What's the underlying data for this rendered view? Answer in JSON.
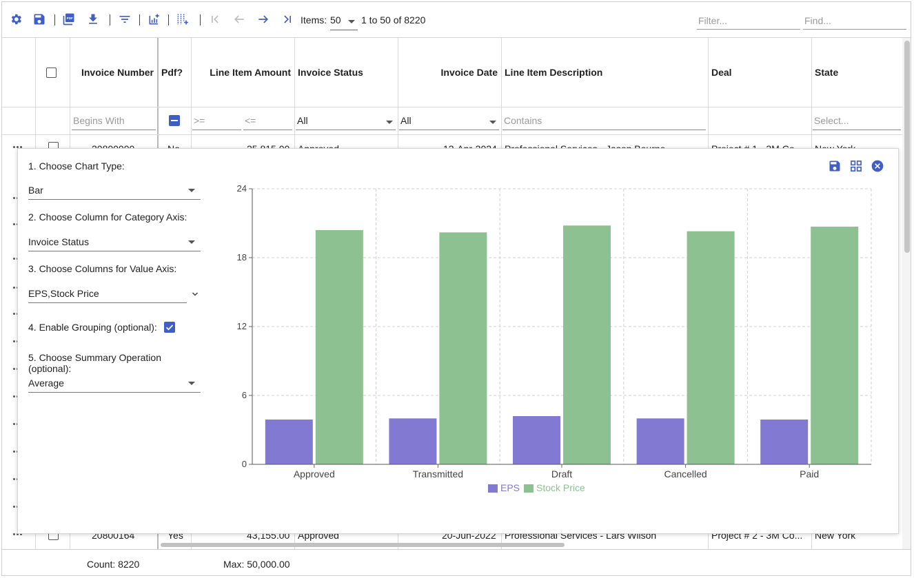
{
  "toolbar": {
    "icons": [
      "settings-icon",
      "save-icon",
      "pdf-icon",
      "download-icon",
      "filter-icon",
      "add-chart-icon",
      "add-column-icon",
      "first-page-icon",
      "prev-page-icon",
      "next-page-icon",
      "last-page-icon"
    ],
    "items_label": "Items:",
    "items_value": "50",
    "page_info": "1 to 50 of 8220",
    "filter_placeholder": "Filter...",
    "find_placeholder": "Find..."
  },
  "grid": {
    "columns": [
      {
        "label": "Invoice Number"
      },
      {
        "label": "Pdf?"
      },
      {
        "label": "Line Item Amount"
      },
      {
        "label": "Invoice Status"
      },
      {
        "label": "Invoice Date"
      },
      {
        "label": "Line Item Description"
      },
      {
        "label": "Deal"
      },
      {
        "label": "State"
      }
    ],
    "filters": {
      "invoice_number": "Begins With",
      "amount_from": ">=",
      "amount_to": "<=",
      "status": "All",
      "date": "All",
      "description": "Contains",
      "state": "Select..."
    },
    "rows": [
      {
        "number": "20800000",
        "pdf": "No",
        "amount": "25,815.00",
        "status": "Approved",
        "date": "12-Apr-2024",
        "description": "Professional Services - Jason Bourne",
        "deal": "Project # 1 - 3M Co...",
        "state": "New York"
      },
      {
        "number": "20800164",
        "pdf": "Yes",
        "amount": "43,155.00",
        "status": "Approved",
        "date": "20-Jun-2022",
        "description": "Professional Services - Lars Wilson",
        "deal": "Project # 2 - 3M Co...",
        "state": "New York"
      }
    ],
    "footer": {
      "count": "Count: 8220",
      "max": "Max: 50,000.00"
    }
  },
  "dialog": {
    "icons": [
      "save-icon",
      "grid-icon",
      "close-icon"
    ],
    "step1_label": "1. Choose Chart Type:",
    "chart_type": "Bar",
    "step2_label": "2. Choose Column for Category Axis:",
    "category_column": "Invoice Status",
    "step3_label": "3. Choose Columns for Value Axis:",
    "value_columns": "EPS,Stock Price",
    "step4_label": "4. Enable Grouping (optional):",
    "grouping_enabled": true,
    "step5_label_line1": "5. Choose Summary Operation",
    "step5_label_line2": "(optional):",
    "summary_operation": "Average"
  },
  "colors": {
    "accent": "#3f5fc7",
    "eps": "#8279d3",
    "stock_price": "#8dc191"
  },
  "chart_data": {
    "type": "bar",
    "categories": [
      "Approved",
      "Transmitted",
      "Draft",
      "Cancelled",
      "Paid"
    ],
    "series": [
      {
        "name": "EPS",
        "values": [
          3.9,
          4.0,
          4.2,
          4.0,
          3.9
        ]
      },
      {
        "name": "Stock Price",
        "values": [
          20.4,
          20.2,
          20.8,
          20.3,
          20.7
        ]
      }
    ],
    "ylim": [
      0,
      24
    ],
    "yticks": [
      0,
      6,
      12,
      18,
      24
    ],
    "grid": true,
    "legend": "bottom",
    "title": "",
    "xlabel": "",
    "ylabel": ""
  }
}
